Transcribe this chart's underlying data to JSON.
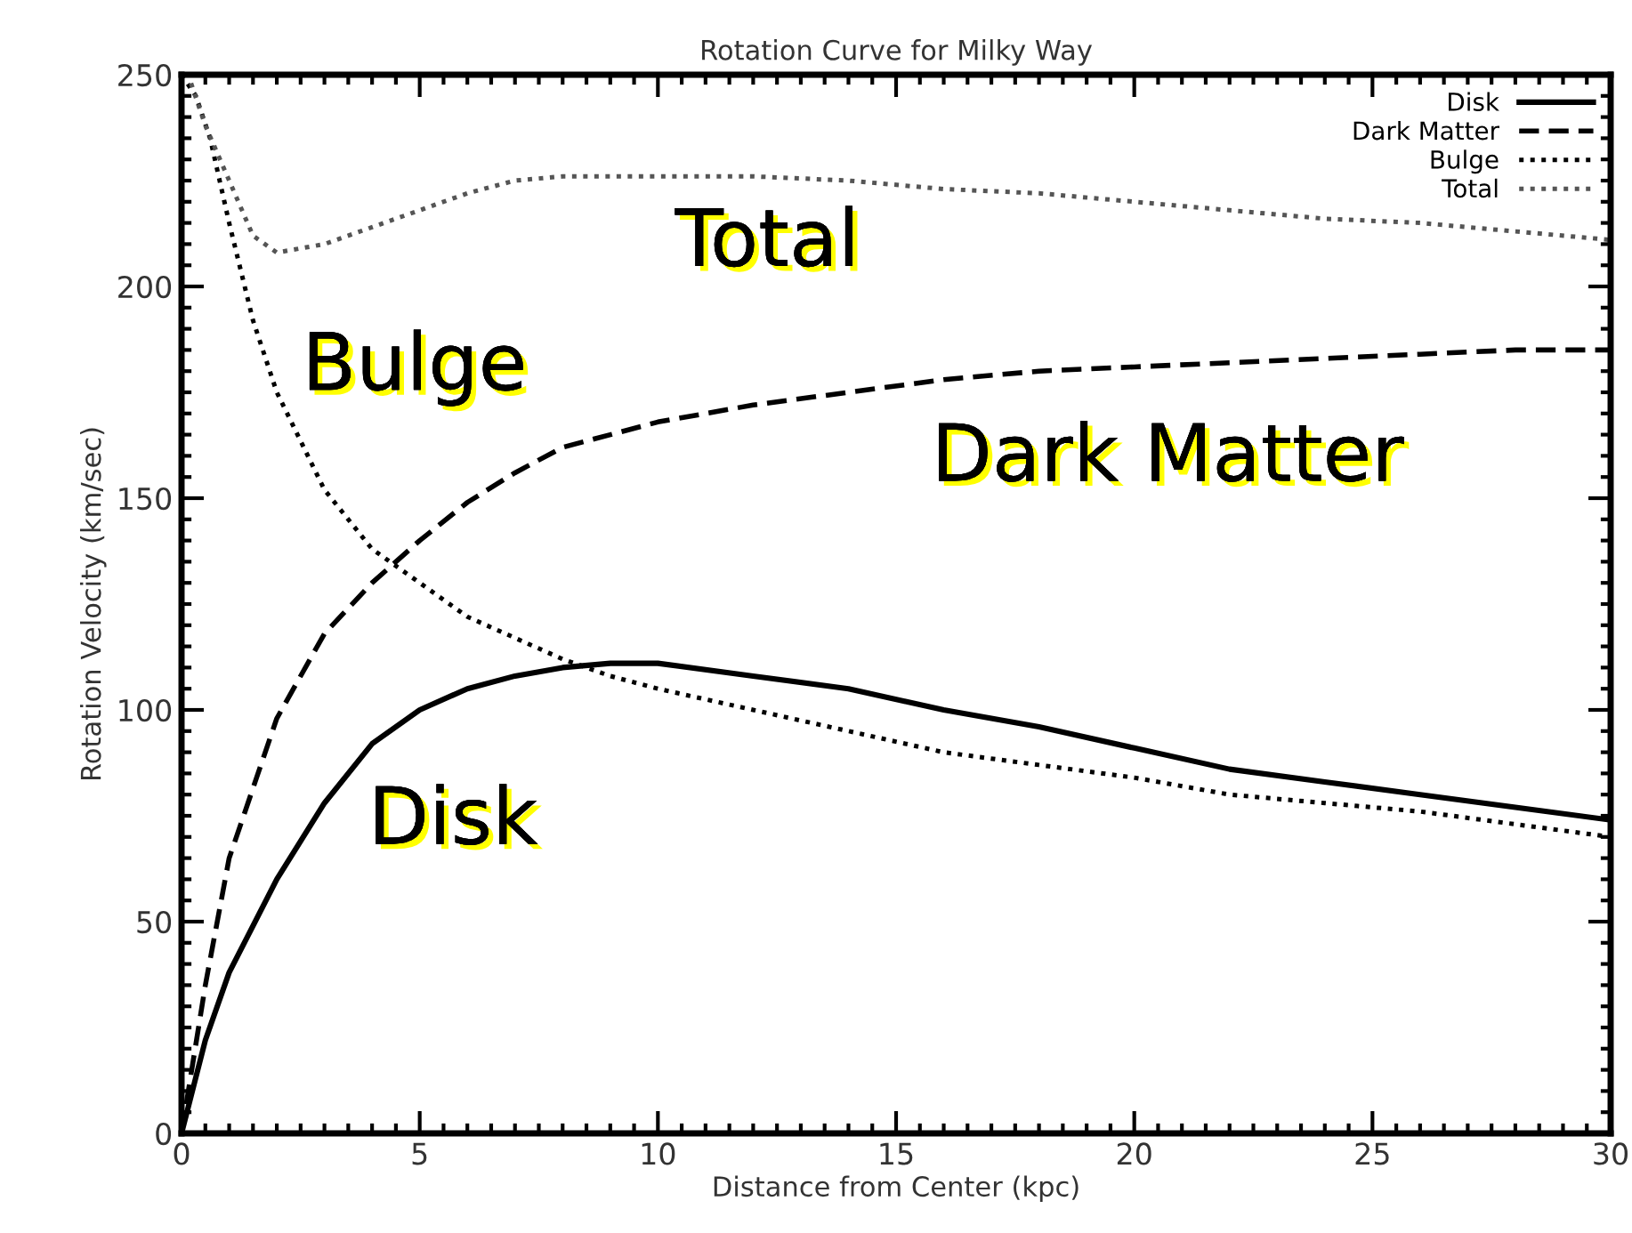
{
  "chart_data": {
    "type": "line",
    "title": "Rotation Curve for Milky Way",
    "xlabel": "Distance from Center (kpc)",
    "ylabel": "Rotation Velocity (km/sec)",
    "xlim": [
      0,
      30
    ],
    "ylim": [
      0,
      250
    ],
    "xticks": [
      0,
      5,
      10,
      15,
      20,
      25,
      30
    ],
    "yticks": [
      0,
      50,
      100,
      150,
      200,
      250
    ],
    "grid": false,
    "legend": "top right",
    "series": [
      {
        "name": "Disk",
        "color": "#000000",
        "line_style": "solid",
        "x": [
          0,
          0.5,
          1,
          2,
          3,
          4,
          5,
          6,
          7,
          8,
          9,
          10,
          12,
          14,
          16,
          18,
          20,
          22,
          24,
          26,
          28,
          30
        ],
        "values": [
          0,
          22,
          38,
          60,
          78,
          92,
          100,
          105,
          108,
          110,
          111,
          111,
          108,
          105,
          100,
          96,
          91,
          86,
          83,
          80,
          77,
          74
        ]
      },
      {
        "name": "Dark Matter",
        "color": "#000000",
        "line_style": "dashed",
        "x": [
          0,
          0.5,
          1,
          2,
          3,
          4,
          5,
          6,
          7,
          8,
          10,
          12,
          14,
          16,
          18,
          20,
          22,
          24,
          26,
          28,
          30
        ],
        "values": [
          0,
          35,
          65,
          98,
          118,
          130,
          140,
          149,
          156,
          162,
          168,
          172,
          175,
          178,
          180,
          181,
          182,
          183,
          184,
          185,
          185
        ]
      },
      {
        "name": "Bulge",
        "color": "#000000",
        "line_style": "dotted",
        "x": [
          0,
          0.3,
          0.6,
          1,
          1.5,
          2,
          3,
          4,
          5,
          6,
          7,
          8,
          9,
          10,
          12,
          14,
          16,
          18,
          20,
          22,
          24,
          26,
          28,
          30
        ],
        "values": [
          250,
          245,
          235,
          215,
          192,
          175,
          152,
          138,
          130,
          122,
          117,
          112,
          108,
          105,
          100,
          95,
          90,
          87,
          84,
          80,
          78,
          76,
          73,
          70
        ]
      },
      {
        "name": "Total",
        "color": "#555555",
        "line_style": "dotted",
        "x": [
          0.2,
          0.5,
          1,
          1.5,
          2,
          3,
          4,
          5,
          6,
          7,
          8,
          10,
          12,
          14,
          16,
          18,
          20,
          22,
          24,
          26,
          28,
          30
        ],
        "values": [
          248,
          238,
          225,
          212,
          208,
          210,
          214,
          218,
          222,
          225,
          226,
          226,
          226,
          225,
          223,
          222,
          220,
          218,
          216,
          215,
          213,
          211
        ]
      }
    ],
    "annotations": [
      "Total",
      "Bulge",
      "Dark Matter",
      "Disk"
    ]
  }
}
